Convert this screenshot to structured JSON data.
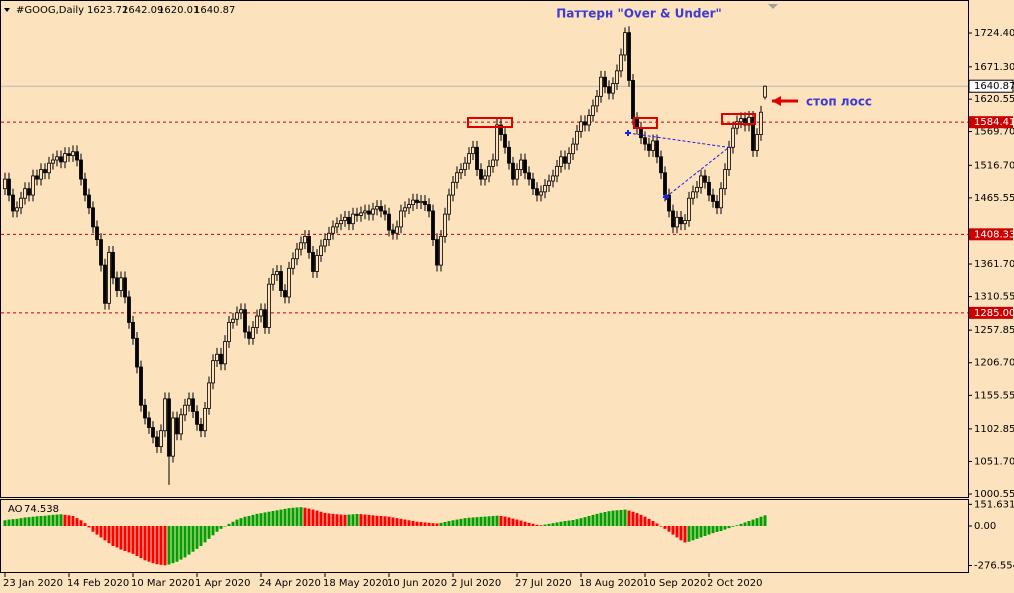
{
  "chart_data": [
    {
      "type": "candlestick",
      "title": "#GOOG,Daily",
      "annotations": [
        "Паттерн \"Over & Under\"",
        "стоп лосс"
      ],
      "categories": [
        "23 Jan 2020",
        null,
        null,
        null,
        null,
        null,
        null,
        null,
        null,
        null,
        null,
        null,
        null,
        null,
        null,
        null,
        "14 Feb 2020",
        null,
        null,
        null,
        null,
        null,
        null,
        null,
        null,
        null,
        null,
        null,
        null,
        null,
        null,
        null,
        "10 Mar 2020",
        null,
        null,
        null,
        null,
        null,
        null,
        null,
        null,
        null,
        null,
        null,
        null,
        null,
        null,
        null,
        "1 Apr 2020",
        null,
        null,
        null,
        null,
        null,
        null,
        null,
        null,
        null,
        null,
        null,
        null,
        null,
        null,
        null,
        "24 Apr 2020",
        null,
        null,
        null,
        null,
        null,
        null,
        null,
        null,
        null,
        null,
        null,
        null,
        null,
        null,
        null,
        "18 May 2020",
        null,
        null,
        null,
        null,
        null,
        null,
        null,
        null,
        null,
        null,
        null,
        null,
        null,
        null,
        null,
        "10 Jun 2020",
        null,
        null,
        null,
        null,
        null,
        null,
        null,
        null,
        null,
        null,
        null,
        null,
        null,
        null,
        null,
        "2 Jul 2020",
        null,
        null,
        null,
        null,
        null,
        null,
        null,
        null,
        null,
        null,
        null,
        null,
        null,
        null,
        null,
        "27 Jul 2020",
        null,
        null,
        null,
        null,
        null,
        null,
        null,
        null,
        null,
        null,
        null,
        null,
        null,
        null,
        null,
        "18 Aug 2020",
        null,
        null,
        null,
        null,
        null,
        null,
        null,
        null,
        null,
        null,
        null,
        null,
        null,
        null,
        null,
        "10 Sep 2020",
        null,
        null,
        null,
        null,
        null,
        null,
        null,
        null,
        null,
        null,
        null,
        null,
        null,
        null,
        null,
        "2 Oct 2020",
        null,
        null,
        null,
        null,
        null,
        null,
        null,
        null,
        null,
        null,
        null,
        null,
        null,
        null
      ],
      "open": [
        1480,
        1495,
        1470,
        1445,
        1450,
        1465,
        1480,
        1470,
        1500,
        1495,
        1510,
        1505,
        1520,
        1525,
        1530,
        1522,
        1535,
        1532,
        1538,
        1525,
        1495,
        1470,
        1450,
        1420,
        1400,
        1360,
        1300,
        1380,
        1340,
        1320,
        1340,
        1310,
        1270,
        1245,
        1200,
        1140,
        1120,
        1105,
        1090,
        1075,
        1100,
        1150,
        1060,
        1120,
        1095,
        1125,
        1140,
        1150,
        1130,
        1110,
        1100,
        1135,
        1175,
        1210,
        1220,
        1205,
        1240,
        1270,
        1275,
        1285,
        1290,
        1255,
        1245,
        1262,
        1280,
        1290,
        1262,
        1330,
        1345,
        1350,
        1320,
        1310,
        1355,
        1370,
        1385,
        1395,
        1405,
        1380,
        1350,
        1375,
        1390,
        1400,
        1410,
        1420,
        1425,
        1430,
        1435,
        1425,
        1440,
        1438,
        1442,
        1445,
        1440,
        1448,
        1452,
        1445,
        1440,
        1415,
        1410,
        1420,
        1445,
        1450,
        1455,
        1462,
        1458,
        1460,
        1455,
        1445,
        1400,
        1360,
        1405,
        1440,
        1470,
        1490,
        1505,
        1510,
        1520,
        1535,
        1545,
        1510,
        1495,
        1500,
        1515,
        1525,
        1580,
        1565,
        1545,
        1520,
        1495,
        1510,
        1525,
        1505,
        1495,
        1480,
        1470,
        1475,
        1485,
        1492,
        1500,
        1515,
        1530,
        1520,
        1535,
        1550,
        1570,
        1585,
        1580,
        1595,
        1610,
        1625,
        1655,
        1640,
        1630,
        1645,
        1665,
        1690,
        1725,
        1650,
        1590,
        1575,
        1560,
        1550,
        1540,
        1555,
        1530,
        1505,
        1470,
        1445,
        1420,
        1435,
        1425,
        1430,
        1465,
        1475,
        1482,
        1500,
        1490,
        1470,
        1460,
        1450,
        1480,
        1510,
        1545,
        1575,
        1585,
        1590,
        1580,
        1592,
        1540,
        1565,
        1623.72
      ],
      "high": [
        1505,
        1505,
        1480,
        1460,
        1475,
        1490,
        1490,
        1510,
        1510,
        1520,
        1520,
        1530,
        1535,
        1540,
        1540,
        1545,
        1545,
        1548,
        1548,
        1535,
        1505,
        1480,
        1460,
        1430,
        1410,
        1370,
        1390,
        1390,
        1350,
        1350,
        1350,
        1320,
        1280,
        1255,
        1210,
        1150,
        1130,
        1115,
        1100,
        1110,
        1160,
        1160,
        1130,
        1130,
        1135,
        1150,
        1160,
        1160,
        1140,
        1120,
        1145,
        1185,
        1220,
        1230,
        1230,
        1250,
        1280,
        1285,
        1295,
        1300,
        1300,
        1265,
        1272,
        1290,
        1300,
        1300,
        1340,
        1355,
        1360,
        1360,
        1330,
        1365,
        1380,
        1395,
        1405,
        1415,
        1415,
        1390,
        1385,
        1400,
        1410,
        1420,
        1430,
        1435,
        1440,
        1445,
        1445,
        1450,
        1450,
        1452,
        1455,
        1455,
        1458,
        1462,
        1462,
        1455,
        1450,
        1425,
        1430,
        1455,
        1460,
        1465,
        1472,
        1472,
        1470,
        1470,
        1465,
        1455,
        1410,
        1415,
        1450,
        1480,
        1500,
        1515,
        1520,
        1530,
        1545,
        1555,
        1555,
        1520,
        1510,
        1525,
        1535,
        1590,
        1590,
        1575,
        1555,
        1530,
        1520,
        1535,
        1535,
        1515,
        1505,
        1490,
        1485,
        1495,
        1502,
        1510,
        1525,
        1540,
        1540,
        1545,
        1560,
        1580,
        1595,
        1595,
        1605,
        1620,
        1635,
        1665,
        1665,
        1650,
        1655,
        1675,
        1700,
        1733,
        1735,
        1660,
        1600,
        1585,
        1570,
        1560,
        1565,
        1565,
        1540,
        1515,
        1480,
        1455,
        1445,
        1445,
        1440,
        1475,
        1485,
        1492,
        1510,
        1510,
        1500,
        1480,
        1470,
        1490,
        1520,
        1555,
        1585,
        1595,
        1600,
        1600,
        1602,
        1602,
        1575,
        1610,
        1642.09
      ],
      "low": [
        1470,
        1460,
        1435,
        1435,
        1440,
        1455,
        1460,
        1460,
        1485,
        1485,
        1495,
        1495,
        1510,
        1515,
        1512,
        1512,
        1522,
        1522,
        1515,
        1485,
        1460,
        1440,
        1410,
        1390,
        1350,
        1290,
        1290,
        1330,
        1310,
        1310,
        1300,
        1260,
        1235,
        1190,
        1130,
        1110,
        1095,
        1080,
        1065,
        1065,
        1090,
        1015,
        1050,
        1085,
        1085,
        1115,
        1130,
        1120,
        1100,
        1090,
        1090,
        1125,
        1165,
        1200,
        1195,
        1195,
        1230,
        1260,
        1265,
        1275,
        1245,
        1235,
        1235,
        1252,
        1270,
        1252,
        1252,
        1320,
        1335,
        1310,
        1300,
        1300,
        1345,
        1360,
        1375,
        1385,
        1370,
        1340,
        1340,
        1365,
        1380,
        1390,
        1400,
        1410,
        1415,
        1420,
        1415,
        1415,
        1428,
        1428,
        1432,
        1430,
        1430,
        1438,
        1435,
        1430,
        1405,
        1400,
        1400,
        1410,
        1435,
        1440,
        1445,
        1448,
        1448,
        1445,
        1435,
        1390,
        1350,
        1350,
        1395,
        1430,
        1460,
        1480,
        1495,
        1500,
        1510,
        1525,
        1500,
        1485,
        1485,
        1490,
        1505,
        1515,
        1555,
        1535,
        1510,
        1485,
        1485,
        1500,
        1495,
        1485,
        1470,
        1460,
        1460,
        1465,
        1475,
        1482,
        1490,
        1505,
        1510,
        1510,
        1525,
        1540,
        1560,
        1570,
        1570,
        1585,
        1600,
        1615,
        1630,
        1620,
        1620,
        1635,
        1655,
        1680,
        1640,
        1580,
        1565,
        1550,
        1540,
        1530,
        1530,
        1520,
        1495,
        1460,
        1435,
        1410,
        1410,
        1415,
        1415,
        1420,
        1455,
        1465,
        1472,
        1480,
        1460,
        1450,
        1440,
        1440,
        1470,
        1500,
        1535,
        1565,
        1575,
        1570,
        1570,
        1530,
        1530,
        1555,
        1620.01
      ],
      "close": [
        1495,
        1470,
        1445,
        1450,
        1465,
        1480,
        1470,
        1500,
        1495,
        1510,
        1505,
        1520,
        1525,
        1530,
        1522,
        1535,
        1532,
        1538,
        1525,
        1495,
        1470,
        1450,
        1420,
        1400,
        1360,
        1300,
        1380,
        1340,
        1320,
        1340,
        1310,
        1270,
        1245,
        1200,
        1140,
        1120,
        1105,
        1090,
        1075,
        1100,
        1150,
        1060,
        1120,
        1095,
        1125,
        1140,
        1150,
        1130,
        1110,
        1100,
        1135,
        1175,
        1210,
        1220,
        1205,
        1240,
        1270,
        1275,
        1285,
        1290,
        1255,
        1245,
        1262,
        1280,
        1290,
        1262,
        1330,
        1345,
        1350,
        1320,
        1310,
        1355,
        1370,
        1385,
        1395,
        1405,
        1380,
        1350,
        1375,
        1390,
        1400,
        1410,
        1420,
        1425,
        1430,
        1435,
        1425,
        1440,
        1438,
        1442,
        1445,
        1440,
        1448,
        1452,
        1445,
        1440,
        1415,
        1410,
        1420,
        1445,
        1450,
        1455,
        1462,
        1458,
        1460,
        1455,
        1445,
        1400,
        1360,
        1405,
        1440,
        1470,
        1490,
        1505,
        1510,
        1520,
        1535,
        1545,
        1510,
        1495,
        1500,
        1515,
        1525,
        1580,
        1565,
        1545,
        1520,
        1495,
        1510,
        1525,
        1505,
        1495,
        1480,
        1470,
        1475,
        1485,
        1492,
        1500,
        1515,
        1530,
        1520,
        1535,
        1550,
        1570,
        1585,
        1580,
        1595,
        1610,
        1625,
        1655,
        1640,
        1630,
        1645,
        1665,
        1690,
        1725,
        1650,
        1590,
        1575,
        1560,
        1550,
        1540,
        1555,
        1530,
        1505,
        1470,
        1445,
        1420,
        1435,
        1425,
        1430,
        1465,
        1475,
        1482,
        1500,
        1490,
        1470,
        1460,
        1450,
        1480,
        1510,
        1545,
        1575,
        1585,
        1590,
        1580,
        1592,
        1540,
        1565,
        1600,
        1640.87
      ],
      "color": "#000000",
      "ylim": [
        995.9,
        1773.1
      ],
      "yticks": [
        {
          "value": 1724.4,
          "label": "1724.40"
        },
        {
          "value": 1671.3,
          "label": "1671.30"
        },
        {
          "value": 1620.55,
          "label": "1620.55"
        },
        {
          "value": 1569.7,
          "label": "1569.70"
        },
        {
          "value": 1516.7,
          "label": "1516.70"
        },
        {
          "value": 1465.55,
          "label": "1465.55"
        },
        {
          "value": 1361.7,
          "label": "1361.70"
        },
        {
          "value": 1310.55,
          "label": "1310.55"
        },
        {
          "value": 1257.85,
          "label": "1257.85"
        },
        {
          "value": 1206.7,
          "label": "1206.70"
        },
        {
          "value": 1155.55,
          "label": "1155.55"
        },
        {
          "value": 1102.85,
          "label": "1102.85"
        },
        {
          "value": 1051.7,
          "label": "1051.70"
        },
        {
          "value": 1000.55,
          "label": "1000.55"
        }
      ],
      "hlines": [
        {
          "value": 1584.41
        },
        {
          "value": 1408.33
        },
        {
          "value": 1285,
          "label": "1285.00"
        }
      ],
      "hline_color": "#cc0000"
    },
    {
      "type": "bar",
      "title": "AO",
      "values": [
        40,
        45,
        48,
        50,
        55,
        60,
        62,
        65,
        68,
        70,
        72,
        75,
        78,
        80,
        82,
        78,
        75,
        70,
        55,
        40,
        20,
        -10,
        -40,
        -60,
        -80,
        -100,
        -120,
        -140,
        -150,
        -165,
        -175,
        -185,
        -195,
        -210,
        -225,
        -240,
        -250,
        -260,
        -268,
        -272,
        -275,
        -270,
        -260,
        -250,
        -235,
        -220,
        -200,
        -180,
        -160,
        -140,
        -115,
        -90,
        -65,
        -40,
        -20,
        0,
        15,
        30,
        45,
        55,
        65,
        70,
        78,
        85,
        90,
        95,
        100,
        105,
        110,
        115,
        120,
        125,
        128,
        130,
        132,
        128,
        122,
        115,
        108,
        100,
        92,
        88,
        85,
        82,
        80,
        78,
        80,
        82,
        84,
        83,
        80,
        78,
        75,
        72,
        70,
        68,
        65,
        60,
        55,
        50,
        45,
        40,
        35,
        30,
        28,
        25,
        22,
        20,
        18,
        22,
        28,
        35,
        40,
        45,
        50,
        55,
        58,
        60,
        62,
        64,
        66,
        68,
        70,
        72,
        70,
        66,
        60,
        52,
        45,
        38,
        30,
        22,
        15,
        8,
        5,
        10,
        15,
        20,
        25,
        30,
        35,
        38,
        42,
        48,
        55,
        62,
        70,
        78,
        85,
        92,
        98,
        104,
        108,
        110,
        112,
        115,
        108,
        100,
        90,
        78,
        65,
        50,
        35,
        18,
        0,
        -20,
        -40,
        -60,
        -80,
        -100,
        -115,
        -110,
        -100,
        -90,
        -80,
        -70,
        -60,
        -50,
        -42,
        -35,
        -25,
        -15,
        -5,
        5,
        15,
        25,
        35,
        45,
        55,
        65,
        74.538
      ],
      "up_color": "#00a000",
      "down_color": "#ff0000",
      "ylim": [
        -329,
        189
      ],
      "yticks": [
        151.631,
        {
          "value": 0,
          "label": "0.00"
        },
        -276.554
      ]
    }
  ]
}
